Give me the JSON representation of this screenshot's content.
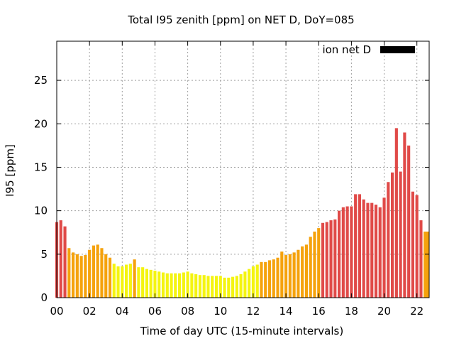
{
  "chart_data": {
    "type": "bar",
    "title": "Total I95 zenith [ppm] on NET D, DoY=085",
    "xlabel": "Time of day UTC (15-minute intervals)",
    "ylabel": "I95 [ppm]",
    "xlim": [
      0,
      22.75
    ],
    "ylim": [
      0,
      29.5
    ],
    "x_ticks": [
      {
        "value": 0,
        "label": "00"
      },
      {
        "value": 2,
        "label": "02"
      },
      {
        "value": 4,
        "label": "04"
      },
      {
        "value": 6,
        "label": "06"
      },
      {
        "value": 8,
        "label": "08"
      },
      {
        "value": 10,
        "label": "10"
      },
      {
        "value": 12,
        "label": "12"
      },
      {
        "value": 14,
        "label": "14"
      },
      {
        "value": 16,
        "label": "16"
      },
      {
        "value": 18,
        "label": "18"
      },
      {
        "value": 20,
        "label": "20"
      },
      {
        "value": 22,
        "label": "22"
      }
    ],
    "y_ticks": [
      {
        "value": 0,
        "label": "0"
      },
      {
        "value": 5,
        "label": "5"
      },
      {
        "value": 10,
        "label": "10"
      },
      {
        "value": 15,
        "label": "15"
      },
      {
        "value": 20,
        "label": "20"
      },
      {
        "value": 25,
        "label": "25"
      }
    ],
    "grid": true,
    "legend": {
      "label": "ion net D",
      "color": "#000000",
      "placement": "top-right"
    },
    "bar_width_hours": 0.18,
    "bar_colors": {
      "red": "#e04a48",
      "orange": "#f5a20c",
      "yellow": "#f4f410"
    },
    "x_start": 0,
    "x_step": 0.25,
    "values": [
      8.7,
      8.9,
      8.2,
      5.7,
      5.2,
      5.0,
      4.8,
      4.9,
      5.5,
      6.0,
      6.1,
      5.7,
      5.0,
      4.6,
      3.9,
      3.6,
      3.6,
      3.8,
      3.9,
      4.4,
      3.5,
      3.5,
      3.3,
      3.2,
      3.1,
      3.0,
      2.9,
      2.8,
      2.8,
      2.8,
      2.8,
      2.9,
      3.0,
      2.8,
      2.7,
      2.6,
      2.6,
      2.5,
      2.5,
      2.5,
      2.5,
      2.3,
      2.3,
      2.4,
      2.5,
      2.7,
      3.0,
      3.3,
      3.6,
      3.8,
      4.1,
      4.1,
      4.3,
      4.4,
      4.6,
      5.3,
      4.9,
      5.0,
      5.2,
      5.5,
      5.9,
      6.1,
      7.0,
      7.6,
      8.0,
      8.6,
      8.7,
      8.9,
      9.0,
      10.0,
      10.4,
      10.5,
      10.5,
      11.9,
      11.9,
      11.3,
      10.9,
      10.9,
      10.7,
      10.4,
      11.5,
      13.3,
      14.4,
      19.5,
      14.5,
      19.0,
      17.5,
      12.2,
      11.8,
      8.9
    ],
    "colors": [
      "red",
      "red",
      "red",
      "orange",
      "orange",
      "orange",
      "orange",
      "orange",
      "orange",
      "orange",
      "orange",
      "orange",
      "orange",
      "orange",
      "yellow",
      "yellow",
      "yellow",
      "yellow",
      "yellow",
      "orange",
      "yellow",
      "yellow",
      "yellow",
      "yellow",
      "yellow",
      "yellow",
      "yellow",
      "yellow",
      "yellow",
      "yellow",
      "yellow",
      "yellow",
      "yellow",
      "yellow",
      "yellow",
      "yellow",
      "yellow",
      "yellow",
      "yellow",
      "yellow",
      "yellow",
      "yellow",
      "yellow",
      "yellow",
      "yellow",
      "yellow",
      "yellow",
      "yellow",
      "yellow",
      "yellow",
      "orange",
      "orange",
      "orange",
      "orange",
      "orange",
      "orange",
      "orange",
      "orange",
      "orange",
      "orange",
      "orange",
      "orange",
      "orange",
      "orange",
      "orange",
      "red",
      "red",
      "red",
      "red",
      "red",
      "red",
      "red",
      "red",
      "red",
      "red",
      "red",
      "red",
      "red",
      "red",
      "red",
      "red",
      "red",
      "red",
      "red",
      "red",
      "red",
      "red",
      "red",
      "red",
      "red"
    ],
    "last_partial": {
      "value": 7.6,
      "color": "orange"
    }
  }
}
